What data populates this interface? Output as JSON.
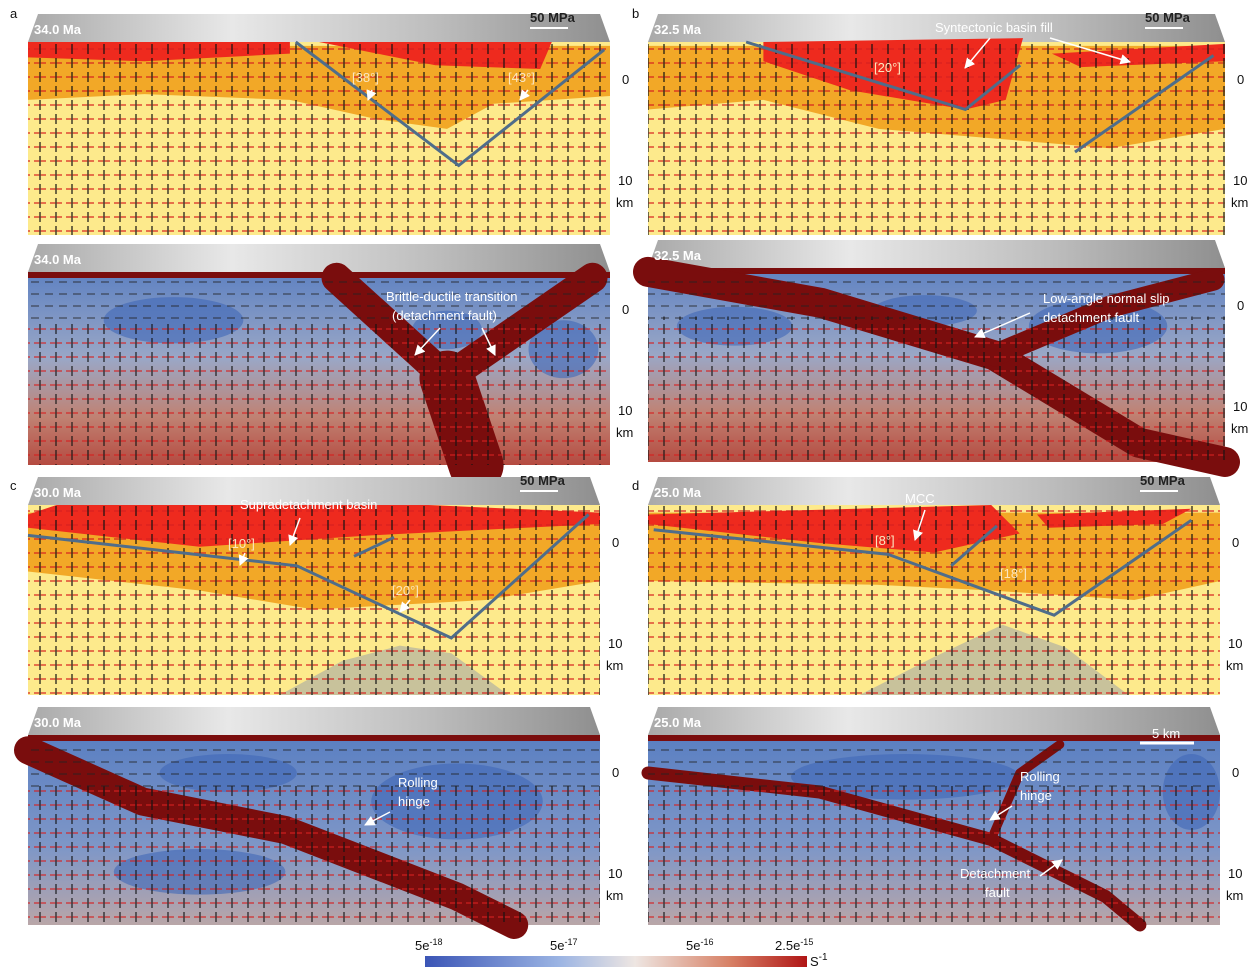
{
  "panels": [
    {
      "letter": "a",
      "stress": {
        "time": "34.0 Ma",
        "scale": "50 MPa",
        "depth": [
          "0",
          "10",
          "km"
        ],
        "notes": [
          "[38°]",
          "[43°]"
        ]
      },
      "strain": {
        "time": "34.0 Ma",
        "depth": [
          "0",
          "10",
          "km"
        ],
        "notes": [
          "Brittle-ductile transition",
          "(detachment fault)"
        ]
      }
    },
    {
      "letter": "b",
      "stress": {
        "time": "32.5 Ma",
        "scale": "50 MPa",
        "depth": [
          "0",
          "10",
          "km"
        ],
        "notes": [
          "Syntectonic basin fill",
          "[20°]"
        ]
      },
      "strain": {
        "time": "32.5 Ma",
        "depth": [
          "0",
          "10",
          "km"
        ],
        "notes": [
          "Low-angle normal slip",
          "detachment fault"
        ]
      }
    },
    {
      "letter": "c",
      "stress": {
        "time": "30.0 Ma",
        "scale": "50 MPa",
        "depth": [
          "0",
          "10",
          "km"
        ],
        "notes": [
          "Supradetachment  basin",
          "[10°]",
          "[20°]"
        ]
      },
      "strain": {
        "time": "30.0 Ma",
        "depth": [
          "0",
          "10",
          "km"
        ],
        "notes": [
          "Rolling",
          "hinge"
        ]
      }
    },
    {
      "letter": "d",
      "stress": {
        "time": "25.0 Ma",
        "scale": "50 MPa",
        "depth": [
          "0",
          "10",
          "km"
        ],
        "notes": [
          "MCC",
          "[8°]",
          "[18°]"
        ]
      },
      "strain": {
        "time": "25.0 Ma",
        "scale": "5 km",
        "depth": [
          "0",
          "10",
          "km"
        ],
        "notes": [
          "Rolling",
          "hinge",
          "Detachment",
          "fault"
        ]
      }
    }
  ],
  "colorbar": {
    "ticks": [
      {
        "base": "5e",
        "exp": "-18"
      },
      {
        "base": "5e",
        "exp": "-17"
      },
      {
        "base": "5e",
        "exp": "-16"
      },
      {
        "base": "2.5e",
        "exp": "-15"
      }
    ],
    "unit": {
      "base": "S",
      "exp": "-1"
    }
  }
}
